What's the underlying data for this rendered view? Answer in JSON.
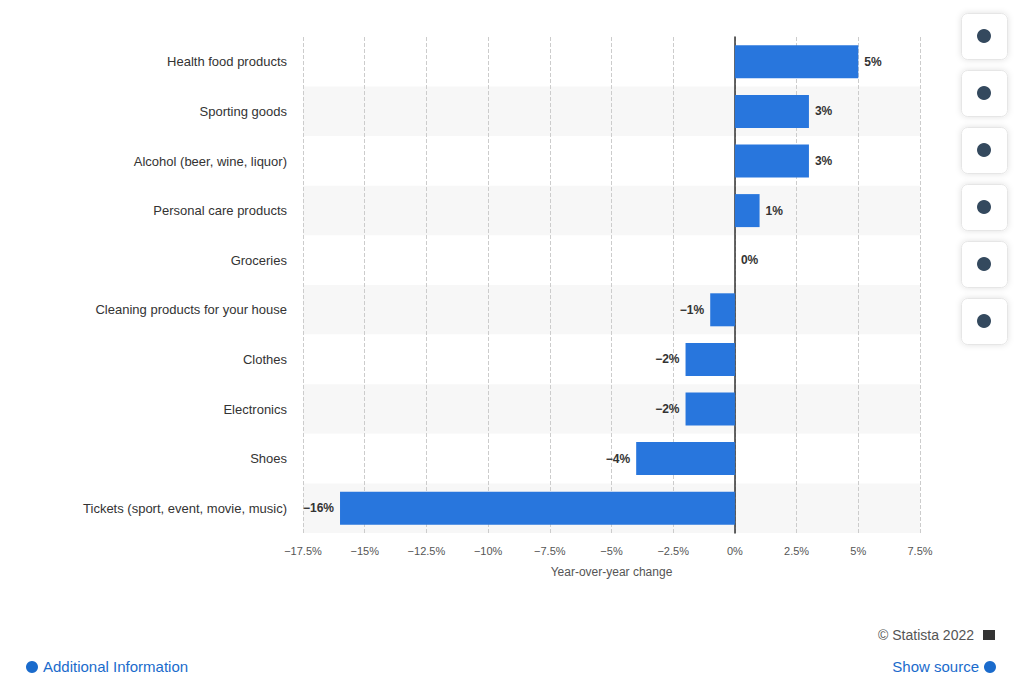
{
  "chart_data": {
    "type": "bar",
    "orientation": "horizontal",
    "categories": [
      "Health food products",
      "Sporting goods",
      "Alcohol (beer, wine, liquor)",
      "Personal care products",
      "Groceries",
      "Cleaning products for your house",
      "Clothes",
      "Electronics",
      "Shoes",
      "Tickets (sport, event, movie, music)"
    ],
    "values": [
      5,
      3,
      3,
      1,
      0,
      -1,
      -2,
      -2,
      -4,
      -16
    ],
    "value_labels": [
      "5%",
      "3%",
      "3%",
      "1%",
      "0%",
      "−1%",
      "−2%",
      "−2%",
      "−4%",
      "−16%"
    ],
    "color": "#2876dd",
    "x_label": "Year-over-year change",
    "xlim": [
      -17.5,
      7.5
    ],
    "xticks": [
      {
        "value": -17.5,
        "label": "−17.5%"
      },
      {
        "value": -15,
        "label": "−15%"
      },
      {
        "value": -12.5,
        "label": "−12.5%"
      },
      {
        "value": -10,
        "label": "−10%"
      },
      {
        "value": -7.5,
        "label": "−7.5%"
      },
      {
        "value": -5,
        "label": "−5%"
      },
      {
        "value": -2.5,
        "label": "−2.5%"
      },
      {
        "value": 0,
        "label": "0%"
      },
      {
        "value": 2.5,
        "label": "2.5%"
      },
      {
        "value": 5,
        "label": "5%"
      },
      {
        "value": 7.5,
        "label": "7.5%"
      }
    ],
    "grid": true,
    "data_labels": true,
    "annotations": [
      "© Statista 2022",
      "Additional Information",
      "Show source"
    ]
  }
}
